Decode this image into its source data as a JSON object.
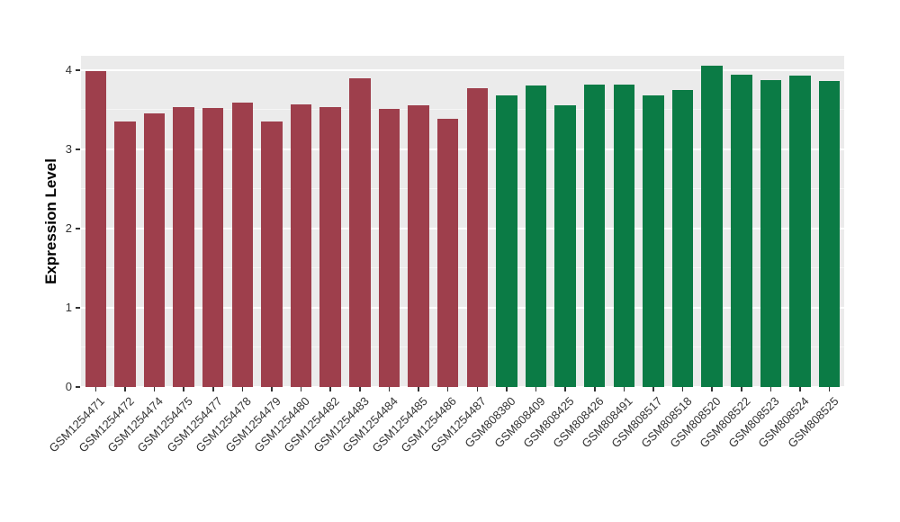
{
  "chart_data": {
    "type": "bar",
    "title": "",
    "xlabel": "",
    "ylabel": "Expression Level",
    "ylim": [
      0,
      4.18
    ],
    "yticks": [
      0,
      1,
      2,
      3,
      4
    ],
    "grid": true,
    "legend_position": "none",
    "categories": [
      "GSM1254471",
      "GSM1254472",
      "GSM1254474",
      "GSM1254475",
      "GSM1254477",
      "GSM1254478",
      "GSM1254479",
      "GSM1254480",
      "GSM1254482",
      "GSM1254483",
      "GSM1254484",
      "GSM1254485",
      "GSM1254486",
      "GSM1254487",
      "GSM808380",
      "GSM808409",
      "GSM808425",
      "GSM808426",
      "GSM808491",
      "GSM808517",
      "GSM808518",
      "GSM808520",
      "GSM808522",
      "GSM808523",
      "GSM808524",
      "GSM808525"
    ],
    "values": [
      3.99,
      3.35,
      3.45,
      3.53,
      3.52,
      3.59,
      3.35,
      3.57,
      3.53,
      3.9,
      3.51,
      3.56,
      3.39,
      3.77,
      3.68,
      3.81,
      3.55,
      3.82,
      3.82,
      3.68,
      3.75,
      4.06,
      3.94,
      3.87,
      3.93,
      3.86
    ],
    "bar_group": [
      "group1",
      "group1",
      "group1",
      "group1",
      "group1",
      "group1",
      "group1",
      "group1",
      "group1",
      "group1",
      "group1",
      "group1",
      "group1",
      "group1",
      "group2",
      "group2",
      "group2",
      "group2",
      "group2",
      "group2",
      "group2",
      "group2",
      "group2",
      "group2",
      "group2",
      "group2"
    ],
    "group_colors": {
      "group1": "#9E3F4C",
      "group2": "#0B7B45"
    }
  },
  "style": {
    "panel_background": "#EBEBEB",
    "grid_color": "#FFFFFF",
    "axis_text_color": "#333333",
    "axis_title_color": "#000000",
    "figure_background": "#FFFFFF"
  }
}
